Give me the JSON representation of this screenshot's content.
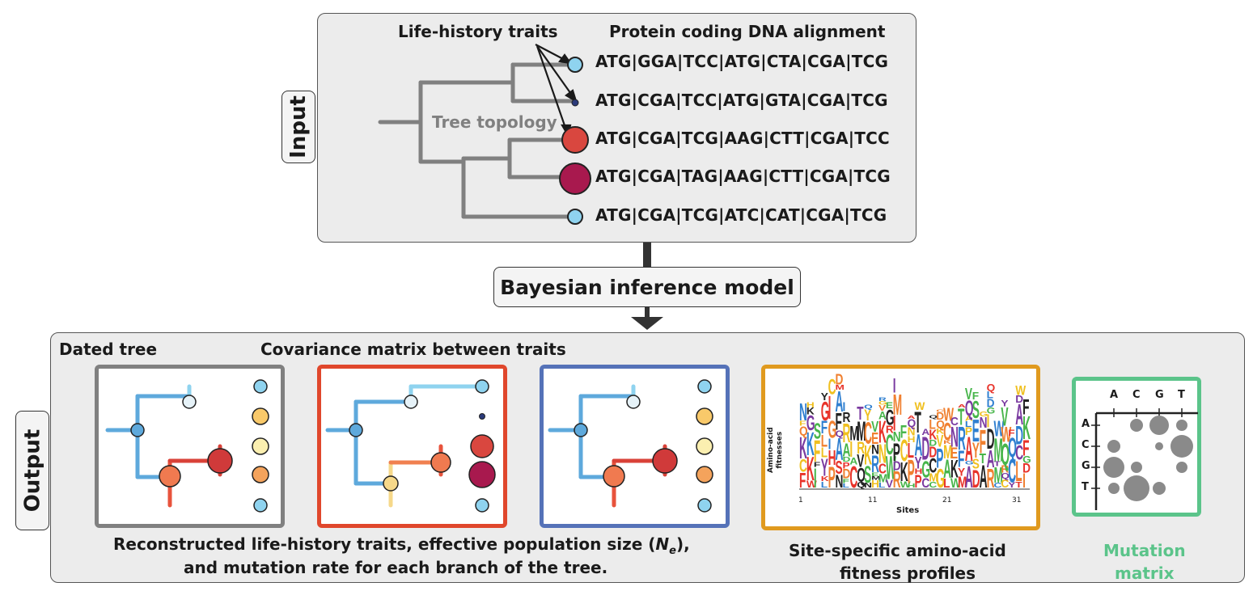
{
  "input": {
    "tag": "Input",
    "life_history_label": "Life-history traits",
    "alignment_label": "Protein coding DNA alignment",
    "tree_topology_label": "Tree topology",
    "sequences": [
      "ATG|GGA|TCC|ATG|CTA|CGA|TCG",
      "ATG|CGA|TCC|ATG|GTA|CGA|TCG",
      "ATG|CGA|TCG|AAG|CTT|CGA|TCC",
      "ATG|CGA|TAG|AAG|CTT|CGA|TCG",
      "ATG|CGA|TCG|ATC|CAT|CGA|TCG"
    ]
  },
  "model": {
    "label": "Bayesian inference model"
  },
  "output": {
    "tag": "Output",
    "dated_tree_label": "Dated tree",
    "covariance_label": "Covariance matrix between traits",
    "reconstructed_caption_line1": "Reconstructed life-history traits, effective population size (",
    "ne_symbol": "N",
    "ne_subscript": "e",
    "reconstructed_caption_line1_end": "),",
    "reconstructed_caption_line2": "and mutation rate for each branch of the tree.",
    "fitness_caption_line1": "Site-specific amino-acid",
    "fitness_caption_line2": "fitness profiles",
    "mutation_caption_line1": "Mutation",
    "mutation_caption_line2": "matrix",
    "logo_ylabel_1": "Amino-acid",
    "logo_ylabel_2": "fitnesses",
    "logo_xlabel": "Sites",
    "logo_ticks": [
      "1",
      "11",
      "21",
      "31"
    ],
    "matrix_nucleotides": [
      "A",
      "C",
      "G",
      "T"
    ]
  },
  "colors": {
    "tree_gray": "#808080",
    "light_blue": "#8fd3ef",
    "dark_navy": "#2b3a7a",
    "red": "#d9473f",
    "crimson": "#a8194e",
    "orange": "#f08050",
    "dated_tree_frame": "#808080",
    "red_frame": "#e0472c",
    "blue_frame": "#5572b8",
    "logo_frame": "#e09a1f",
    "matrix_frame": "#5bc48a",
    "matrix_text": "#5bc48a"
  }
}
